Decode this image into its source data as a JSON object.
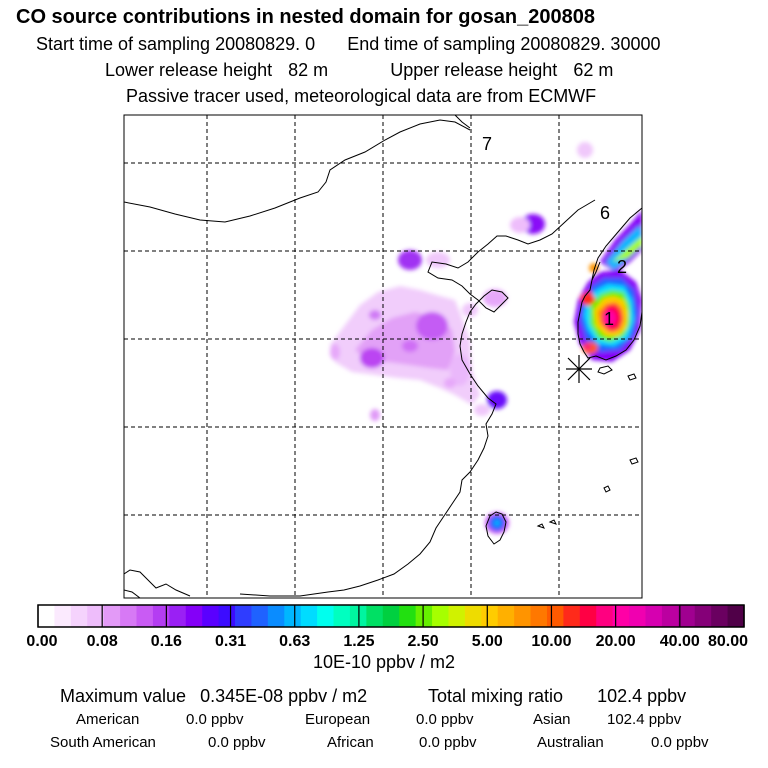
{
  "header": {
    "title": "CO  source contributions in nested domain for gosan_200808",
    "start_label": "Start time of sampling",
    "start_value": "20080829.    0",
    "end_label": "End time of sampling",
    "end_value": "20080829. 30000",
    "lower_label": "Lower release height",
    "lower_value": "82 m",
    "upper_label": "Upper release height",
    "upper_value": "62 m",
    "tracer_note": "Passive tracer used, meteorological data are from ECMWF"
  },
  "map": {
    "region_labels": [
      "1",
      "2",
      "6",
      "7"
    ],
    "receptor_marker": "receptor-star"
  },
  "colorbar": {
    "tick_labels": [
      "0.00",
      "0.08",
      "0.16",
      "0.31",
      "0.63",
      "1.25",
      "2.50",
      "5.00",
      "10.00",
      "20.00",
      "40.00",
      "80.00"
    ],
    "colors": [
      "#ffffff",
      "#fbeafe",
      "#f5d3fd",
      "#eebdfb",
      "#e39af7",
      "#d779f5",
      "#c95bf4",
      "#b43df2",
      "#9a20f4",
      "#8400f8",
      "#5a00ff",
      "#3c0cff",
      "#2f3dff",
      "#1f62ff",
      "#0a8cff",
      "#00b6ff",
      "#00dcff",
      "#00ffee",
      "#00ffc0",
      "#00f5a0",
      "#00e064",
      "#00d040",
      "#22e010",
      "#66f000",
      "#a6ff00",
      "#d0f200",
      "#eedc00",
      "#ffcc00",
      "#ffb000",
      "#ff9400",
      "#ff7800",
      "#ff5a00",
      "#ff2a1a",
      "#ff0044",
      "#ff0080",
      "#ff00a6",
      "#f000b0",
      "#d600b0",
      "#bb00a0",
      "#a00090",
      "#850078",
      "#6a0060",
      "#500048"
    ],
    "unit": "10E-10 ppbv / m2"
  },
  "stats": {
    "max_label": "Maximum value",
    "max_value": "0.345E-08 ppbv / m2",
    "total_label": "Total mixing ratio",
    "total_value": "102.4 ppbv",
    "regions": [
      {
        "name": "American",
        "value": "0.0 ppbv"
      },
      {
        "name": "European",
        "value": "0.0 ppbv"
      },
      {
        "name": "Asian",
        "value": "102.4 ppbv"
      },
      {
        "name": "South American",
        "value": "0.0 ppbv"
      },
      {
        "name": "African",
        "value": "0.0 ppbv"
      },
      {
        "name": "Australian",
        "value": "0.0 ppbv"
      }
    ]
  }
}
